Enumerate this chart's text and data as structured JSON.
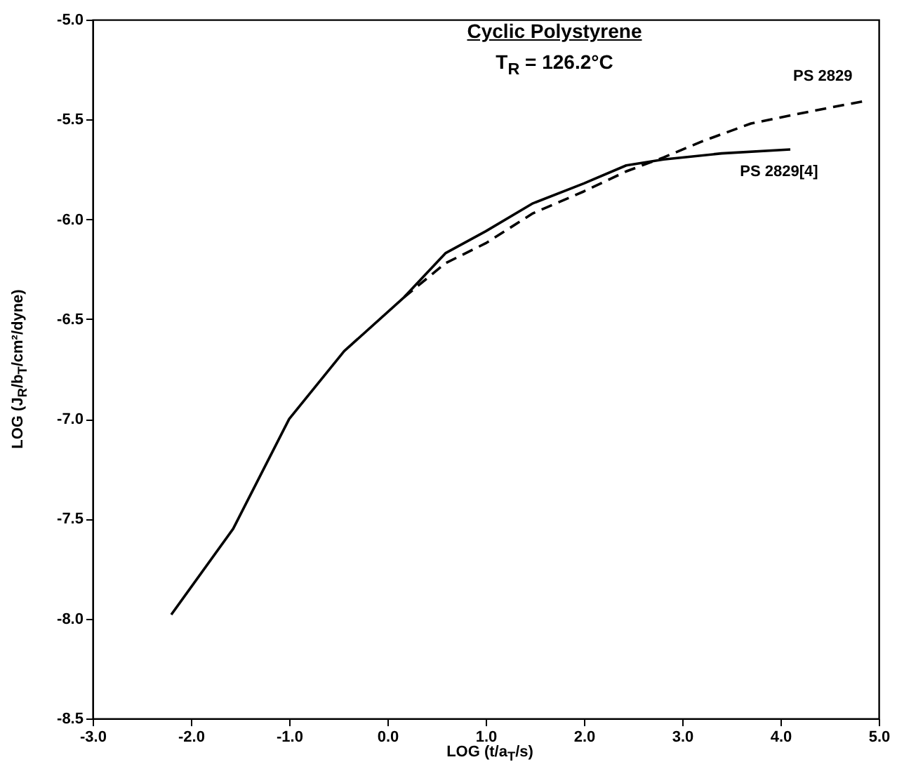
{
  "chart_data": {
    "type": "line",
    "title": "Cyclic Polystyrene",
    "subtitle": "T$_{R}$ = 126.2°C",
    "xlabel": "LOG (t/a$_{T}$/s)",
    "ylabel": "LOG (J$_{R}$/b$_{T}$/cm²/dyne)",
    "xlim": [
      -3,
      5
    ],
    "ylim": [
      -8.5,
      -5
    ],
    "xticks": [
      {
        "value": -3,
        "label": "-3.0"
      },
      {
        "value": -2,
        "label": "-2.0"
      },
      {
        "value": -1,
        "label": "-1.0"
      },
      {
        "value": 0,
        "label": "0.0"
      },
      {
        "value": 1,
        "label": "1.0"
      },
      {
        "value": 2,
        "label": "2.0"
      },
      {
        "value": 3,
        "label": "3.0"
      },
      {
        "value": 4,
        "label": "4.0"
      },
      {
        "value": 5,
        "label": "5.0"
      }
    ],
    "yticks": [
      {
        "value": -8.5,
        "label": "-8.5"
      },
      {
        "value": -8,
        "label": "-8.0"
      },
      {
        "value": -7.5,
        "label": "-7.5"
      },
      {
        "value": -7,
        "label": "-7.0"
      },
      {
        "value": -6.5,
        "label": "-6.5"
      },
      {
        "value": -6,
        "label": "-6.0"
      },
      {
        "value": -5.5,
        "label": "-5.5"
      },
      {
        "value": -5,
        "label": "-5.0"
      }
    ],
    "grid": false,
    "series": [
      {
        "name": "PS 2829[4]",
        "color": "#000000",
        "line_style": "solid",
        "x": [
          -2.2,
          -1.57,
          -1.0,
          -0.44,
          0.17,
          0.59,
          1.0,
          1.48,
          2.0,
          2.43,
          2.81,
          3.4,
          4.1
        ],
        "values": [
          -7.98,
          -7.55,
          -7.0,
          -6.66,
          -6.39,
          -6.17,
          -6.06,
          -5.92,
          -5.82,
          -5.73,
          -5.7,
          -5.67,
          -5.65
        ]
      },
      {
        "name": "PS 2829",
        "color": "#000000",
        "line_style": "dashed",
        "x": [
          0.17,
          0.59,
          1.0,
          1.48,
          2.0,
          2.43,
          2.81,
          3.2,
          3.7,
          4.3,
          4.83
        ],
        "values": [
          -6.39,
          -6.22,
          -6.12,
          -5.97,
          -5.86,
          -5.76,
          -5.69,
          -5.61,
          -5.52,
          -5.46,
          -5.41
        ]
      }
    ]
  }
}
